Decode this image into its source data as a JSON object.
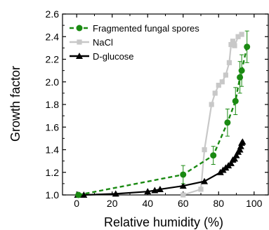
{
  "chart_data": {
    "type": "line",
    "xlabel": "Relative humidity (%)",
    "ylabel": "Growth factor",
    "xlim": [
      -8,
      108
    ],
    "ylim": [
      1.0,
      2.6
    ],
    "x_ticks": [
      0,
      20,
      40,
      60,
      80,
      100
    ],
    "y_ticks": [
      1.0,
      1.2,
      1.4,
      1.6,
      1.8,
      2.0,
      2.2,
      2.4,
      2.6
    ],
    "y_tick_labels": [
      "1.0",
      "1.2",
      "1.4",
      "1.6",
      "1.8",
      "2.0",
      "2.2",
      "2.4",
      "2.6"
    ],
    "x_tick_labels": [
      "0",
      "20",
      "40",
      "60",
      "80",
      "100"
    ],
    "legend_position": "top-left",
    "grid": false,
    "series": [
      {
        "name": "Fragmented fungal spores",
        "color": "#1a8a12",
        "marker": "circle",
        "line_style": "dashed",
        "points": [
          {
            "x": 1,
            "y": 1.0,
            "err": 0
          },
          {
            "x": 60,
            "y": 1.18,
            "err": 0.08
          },
          {
            "x": 77,
            "y": 1.35,
            "err": 0.08
          },
          {
            "x": 85,
            "y": 1.64,
            "err": 0.12
          },
          {
            "x": 89.5,
            "y": 1.83,
            "err": 0.12
          },
          {
            "x": 92,
            "y": 2.04,
            "err": 0.14
          },
          {
            "x": 93,
            "y": 2.1,
            "err": 0.14
          },
          {
            "x": 96,
            "y": 2.31,
            "err": 0.14
          }
        ]
      },
      {
        "name": "NaCl",
        "color": "#c8c8c8",
        "marker": "square",
        "line_style": "solid",
        "points": [
          {
            "x": 60,
            "y": 1.0
          },
          {
            "x": 70,
            "y": 1.05
          },
          {
            "x": 72,
            "y": 1.4
          },
          {
            "x": 76,
            "y": 1.8
          },
          {
            "x": 78,
            "y": 1.9
          },
          {
            "x": 80,
            "y": 1.97
          },
          {
            "x": 82,
            "y": 2.0
          },
          {
            "x": 84,
            "y": 2.06
          },
          {
            "x": 86,
            "y": 2.17
          },
          {
            "x": 87,
            "y": 2.33
          },
          {
            "x": 88,
            "y": 2.36
          },
          {
            "x": 89,
            "y": 2.32
          },
          {
            "x": 91,
            "y": 2.4
          },
          {
            "x": 93,
            "y": 2.42
          }
        ]
      },
      {
        "name": "D-glucose",
        "color": "#000000",
        "marker": "triangle",
        "line_style": "solid",
        "points": [
          {
            "x": 0.5,
            "y": 1.0
          },
          {
            "x": 4,
            "y": 1.0
          },
          {
            "x": 22,
            "y": 1.01
          },
          {
            "x": 40,
            "y": 1.03
          },
          {
            "x": 44,
            "y": 1.04
          },
          {
            "x": 47,
            "y": 1.05
          },
          {
            "x": 60,
            "y": 1.08
          },
          {
            "x": 72,
            "y": 1.12
          },
          {
            "x": 81,
            "y": 1.2
          },
          {
            "x": 82.5,
            "y": 1.22
          },
          {
            "x": 84,
            "y": 1.24
          },
          {
            "x": 85.5,
            "y": 1.26
          },
          {
            "x": 87,
            "y": 1.28
          },
          {
            "x": 88,
            "y": 1.31
          },
          {
            "x": 89,
            "y": 1.32
          },
          {
            "x": 90,
            "y": 1.35
          },
          {
            "x": 91,
            "y": 1.38
          },
          {
            "x": 92,
            "y": 1.4
          },
          {
            "x": 92.5,
            "y": 1.43
          },
          {
            "x": 93,
            "y": 1.46
          },
          {
            "x": 93.5,
            "y": 1.47
          }
        ]
      }
    ]
  }
}
